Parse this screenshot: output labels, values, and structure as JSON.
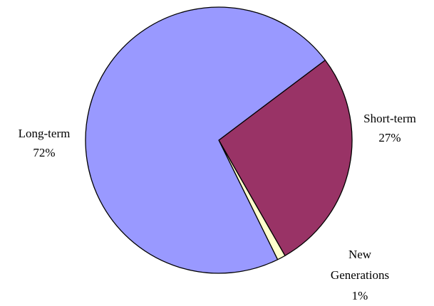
{
  "chart_data": {
    "type": "pie",
    "title": "",
    "slices": [
      {
        "label": "Short-term",
        "label_lines": [
          "Short-term"
        ],
        "value": 27,
        "value_label": "27%",
        "color": "#993366"
      },
      {
        "label": "New Generations",
        "label_lines": [
          "New",
          "Generations"
        ],
        "value": 1,
        "value_label": "1%",
        "color": "#FFFFCC"
      },
      {
        "label": "Long-term",
        "label_lines": [
          "Long-term"
        ],
        "value": 72,
        "value_label": "72%",
        "color": "#9999FF"
      }
    ],
    "start_angle_deg": 53,
    "direction": "clockwise",
    "legend": "none",
    "slice_border_color": "#000000"
  }
}
